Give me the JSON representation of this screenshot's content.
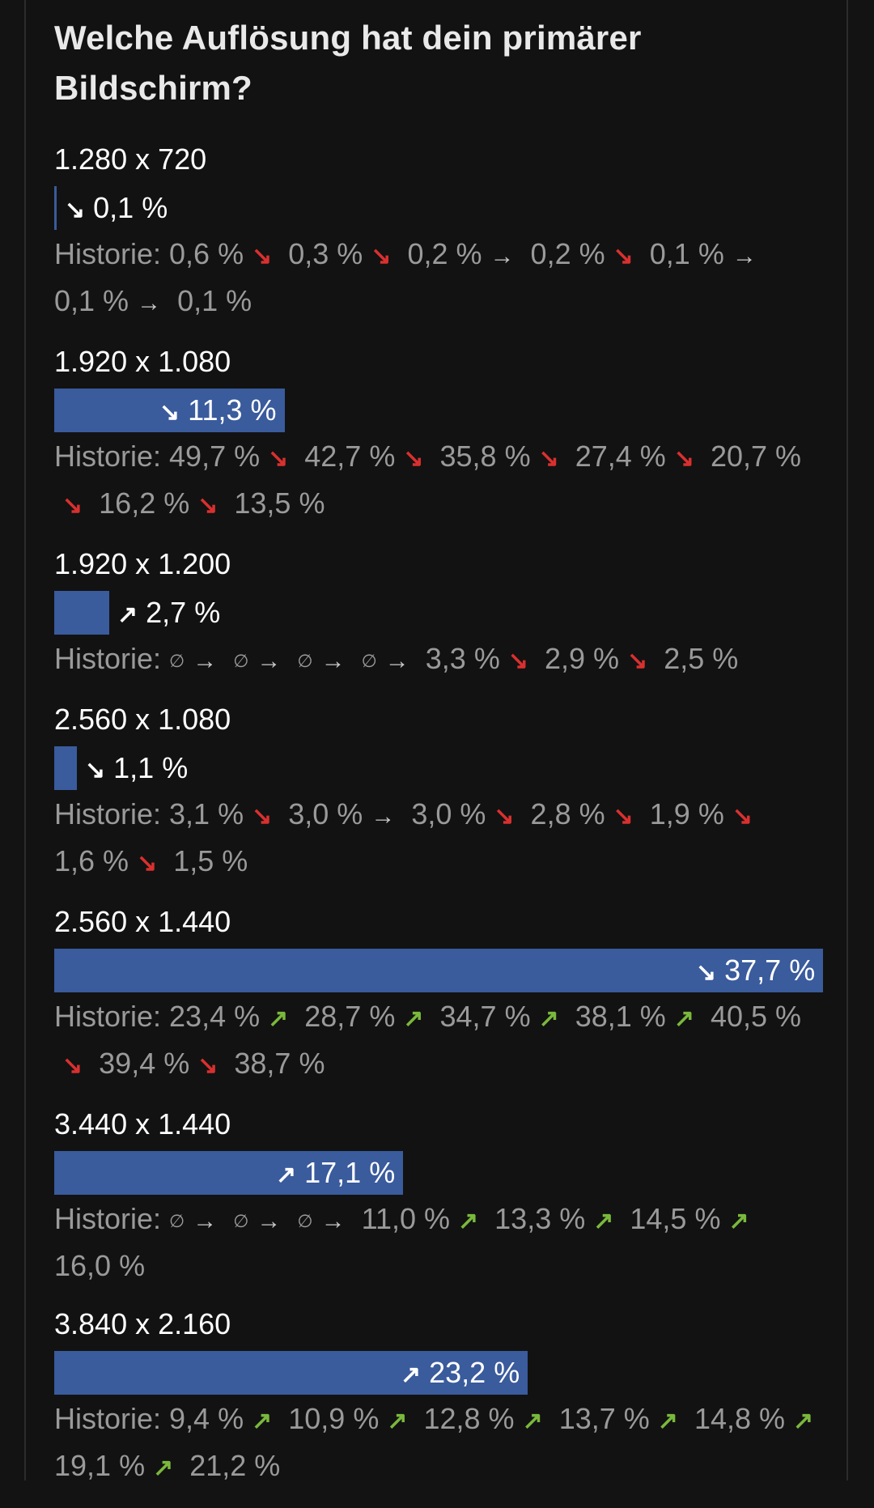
{
  "title": "Welche Auflösung hat dein primärer Bildschirm?",
  "history_label": "Historie:",
  "colors": {
    "bar": "#3a5b9c",
    "down": "#d9302f",
    "up": "#7ab83c",
    "flat": "#c8c8c8"
  },
  "chart_data": {
    "type": "bar",
    "title": "Welche Auflösung hat dein primärer Bildschirm?",
    "orientation": "horizontal",
    "xlim": [
      0,
      37.7
    ],
    "categories": [
      "1.280 x 720",
      "1.920 x 1.080",
      "1.920 x 1.200",
      "2.560 x 1.080",
      "2.560 x 1.440",
      "3.440 x 1.440",
      "3.840 x 2.160"
    ],
    "values": [
      0.1,
      11.3,
      2.7,
      1.1,
      37.7,
      17.1,
      23.2
    ],
    "rows": [
      {
        "label": "1.280 x 720",
        "value": 0.1,
        "display": "0,1 %",
        "trend": "down",
        "history": [
          {
            "text": "0,6 %",
            "trend": "down"
          },
          {
            "text": "0,3 %",
            "trend": "down"
          },
          {
            "text": "0,2 %",
            "trend": "flat"
          },
          {
            "text": "0,2 %",
            "trend": "down"
          },
          {
            "text": "0,1 %",
            "trend": "flat"
          },
          {
            "text": "0,1 %",
            "trend": "flat"
          },
          {
            "text": "0,1 %",
            "trend": null
          }
        ]
      },
      {
        "label": "1.920 x 1.080",
        "value": 11.3,
        "display": "11,3 %",
        "trend": "down",
        "history": [
          {
            "text": "49,7 %",
            "trend": "down"
          },
          {
            "text": "42,7 %",
            "trend": "down"
          },
          {
            "text": "35,8 %",
            "trend": "down"
          },
          {
            "text": "27,4 %",
            "trend": "down"
          },
          {
            "text": "20,7 %",
            "trend": "down"
          },
          {
            "text": "16,2 %",
            "trend": "down"
          },
          {
            "text": "13,5 %",
            "trend": null
          }
        ]
      },
      {
        "label": "1.920 x 1.200",
        "value": 2.7,
        "display": "2,7 %",
        "trend": "up",
        "history": [
          {
            "text": "∅",
            "none": true,
            "trend": "flat"
          },
          {
            "text": "∅",
            "none": true,
            "trend": "flat"
          },
          {
            "text": "∅",
            "none": true,
            "trend": "flat"
          },
          {
            "text": "∅",
            "none": true,
            "trend": "flat"
          },
          {
            "text": "3,3 %",
            "trend": "down"
          },
          {
            "text": "2,9 %",
            "trend": "down"
          },
          {
            "text": "2,5 %",
            "trend": null
          }
        ]
      },
      {
        "label": "2.560 x 1.080",
        "value": 1.1,
        "display": "1,1 %",
        "trend": "down",
        "history": [
          {
            "text": "3,1 %",
            "trend": "down"
          },
          {
            "text": "3,0 %",
            "trend": "flat"
          },
          {
            "text": "3,0 %",
            "trend": "down"
          },
          {
            "text": "2,8 %",
            "trend": "down"
          },
          {
            "text": "1,9 %",
            "trend": "down"
          },
          {
            "text": "1,6 %",
            "trend": "down"
          },
          {
            "text": "1,5 %",
            "trend": null
          }
        ]
      },
      {
        "label": "2.560 x 1.440",
        "value": 37.7,
        "display": "37,7 %",
        "trend": "down",
        "history": [
          {
            "text": "23,4 %",
            "trend": "up"
          },
          {
            "text": "28,7 %",
            "trend": "up"
          },
          {
            "text": "34,7 %",
            "trend": "up"
          },
          {
            "text": "38,1 %",
            "trend": "up"
          },
          {
            "text": "40,5 %",
            "trend": "down"
          },
          {
            "text": "39,4 %",
            "trend": "down"
          },
          {
            "text": "38,7 %",
            "trend": null
          }
        ]
      },
      {
        "label": "3.440 x 1.440",
        "value": 17.1,
        "display": "17,1 %",
        "trend": "up",
        "history": [
          {
            "text": "∅",
            "none": true,
            "trend": "flat"
          },
          {
            "text": "∅",
            "none": true,
            "trend": "flat"
          },
          {
            "text": "∅",
            "none": true,
            "trend": "flat"
          },
          {
            "text": "11,0 %",
            "trend": "up"
          },
          {
            "text": "13,3 %",
            "trend": "up"
          },
          {
            "text": "14,5 %",
            "trend": "up"
          },
          {
            "text": "16,0 %",
            "trend": null
          }
        ]
      },
      {
        "label": "3.840 x 2.160",
        "value": 23.2,
        "display": "23,2 %",
        "trend": "up",
        "history": [
          {
            "text": "9,4 %",
            "trend": "up"
          },
          {
            "text": "10,9 %",
            "trend": "up"
          },
          {
            "text": "12,8 %",
            "trend": "up"
          },
          {
            "text": "13,7 %",
            "trend": "up"
          },
          {
            "text": "14,8 %",
            "trend": "up"
          },
          {
            "text": "19,1 %",
            "trend": "up"
          },
          {
            "text": "21,2 %",
            "trend": null
          }
        ]
      }
    ]
  }
}
